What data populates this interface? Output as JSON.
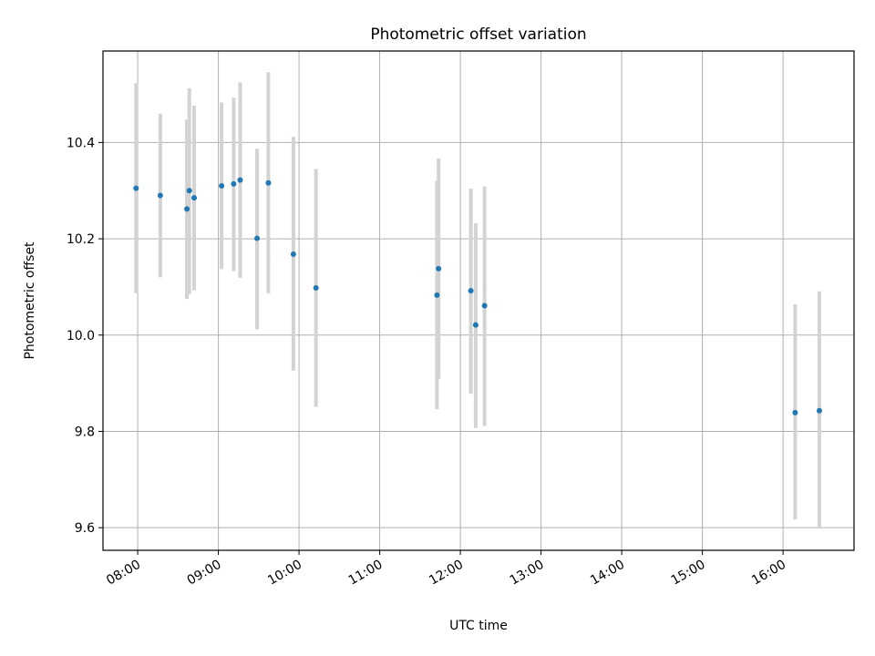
{
  "chart_data": {
    "type": "scatter",
    "title": "Photometric offset variation",
    "xlabel": "UTC time",
    "ylabel": "Photometric offset",
    "x_unit": "hours UTC",
    "xlim": [
      7.57,
      16.88
    ],
    "ylim": [
      9.553,
      10.59
    ],
    "grid": true,
    "x_ticks": [
      {
        "value": 8,
        "label": "08:00"
      },
      {
        "value": 9,
        "label": "09:00"
      },
      {
        "value": 10,
        "label": "10:00"
      },
      {
        "value": 11,
        "label": "11:00"
      },
      {
        "value": 12,
        "label": "12:00"
      },
      {
        "value": 13,
        "label": "13:00"
      },
      {
        "value": 14,
        "label": "14:00"
      },
      {
        "value": 15,
        "label": "15:00"
      },
      {
        "value": 16,
        "label": "16:00"
      }
    ],
    "y_ticks": [
      {
        "value": 9.6,
        "label": "9.6"
      },
      {
        "value": 9.8,
        "label": "9.8"
      },
      {
        "value": 10.0,
        "label": "10.0"
      },
      {
        "value": 10.2,
        "label": "10.2"
      },
      {
        "value": 10.4,
        "label": "10.4"
      }
    ],
    "point_color": "#1f77b4",
    "errorbar_color": "#d3d3d3",
    "points": [
      {
        "x": 7.98,
        "y": 10.305,
        "ylow": 10.087,
        "yhigh": 10.523
      },
      {
        "x": 8.28,
        "y": 10.29,
        "ylow": 10.12,
        "yhigh": 10.46
      },
      {
        "x": 8.61,
        "y": 10.262,
        "ylow": 10.075,
        "yhigh": 10.448
      },
      {
        "x": 8.64,
        "y": 10.3,
        "ylow": 10.085,
        "yhigh": 10.513
      },
      {
        "x": 8.7,
        "y": 10.285,
        "ylow": 10.093,
        "yhigh": 10.477
      },
      {
        "x": 9.04,
        "y": 10.31,
        "ylow": 10.137,
        "yhigh": 10.483
      },
      {
        "x": 9.19,
        "y": 10.314,
        "ylow": 10.133,
        "yhigh": 10.493
      },
      {
        "x": 9.27,
        "y": 10.322,
        "ylow": 10.119,
        "yhigh": 10.525
      },
      {
        "x": 9.48,
        "y": 10.201,
        "ylow": 10.012,
        "yhigh": 10.387
      },
      {
        "x": 9.62,
        "y": 10.316,
        "ylow": 10.087,
        "yhigh": 10.546
      },
      {
        "x": 9.93,
        "y": 10.168,
        "ylow": 9.926,
        "yhigh": 10.412
      },
      {
        "x": 10.21,
        "y": 10.098,
        "ylow": 9.851,
        "yhigh": 10.345
      },
      {
        "x": 11.71,
        "y": 10.083,
        "ylow": 9.846,
        "yhigh": 10.32
      },
      {
        "x": 11.73,
        "y": 10.138,
        "ylow": 9.909,
        "yhigh": 10.367
      },
      {
        "x": 12.13,
        "y": 10.092,
        "ylow": 9.878,
        "yhigh": 10.304
      },
      {
        "x": 12.19,
        "y": 10.021,
        "ylow": 9.807,
        "yhigh": 10.232
      },
      {
        "x": 12.3,
        "y": 10.061,
        "ylow": 9.811,
        "yhigh": 10.309
      },
      {
        "x": 16.15,
        "y": 9.839,
        "ylow": 9.617,
        "yhigh": 10.064
      },
      {
        "x": 16.45,
        "y": 9.843,
        "ylow": 9.598,
        "yhigh": 10.091
      }
    ]
  }
}
